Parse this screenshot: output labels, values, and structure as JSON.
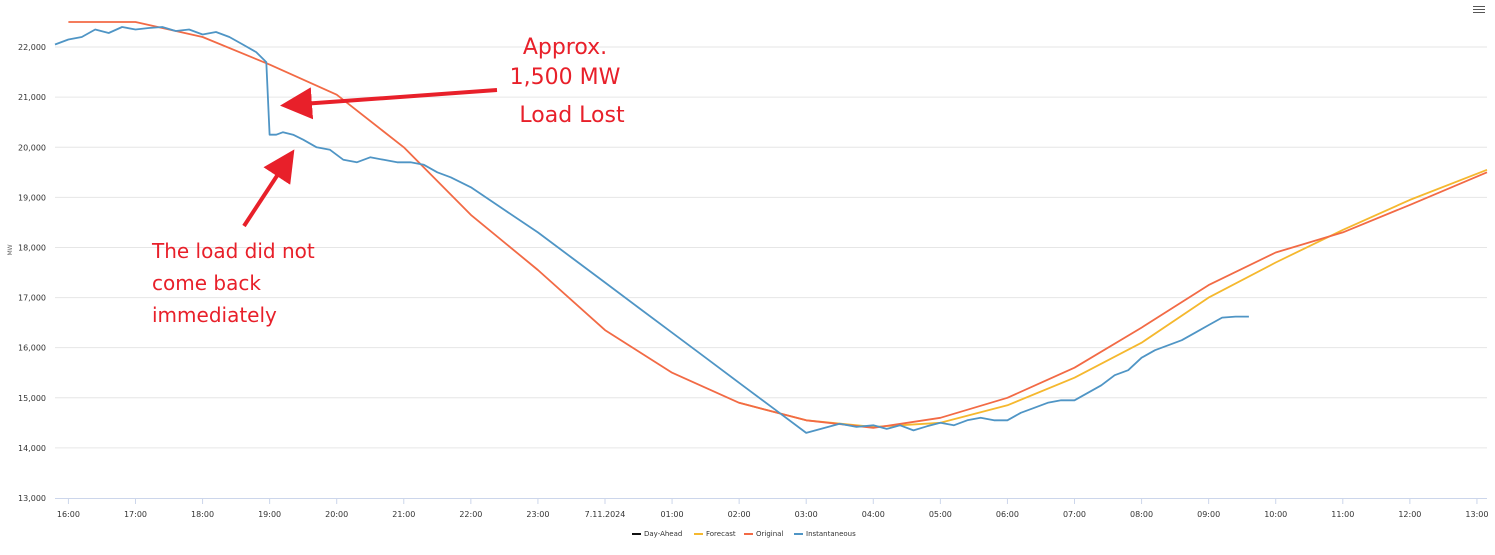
{
  "menu_icon": "hamburger-menu-icon",
  "chart_data": {
    "type": "line",
    "ylabel": "MW",
    "ylim": [
      13000,
      22500
    ],
    "yticks": [
      13000,
      14000,
      15000,
      16000,
      17000,
      18000,
      19000,
      20000,
      21000,
      22000
    ],
    "ytick_labels": [
      "13,000",
      "14,000",
      "15,000",
      "16,000",
      "17,000",
      "18,000",
      "19,000",
      "20,000",
      "21,000",
      "22,000"
    ],
    "xlim": [
      15.8,
      37.15
    ],
    "xticks": [
      16,
      17,
      18,
      19,
      20,
      21,
      22,
      23,
      24,
      25,
      26,
      27,
      28,
      29,
      30,
      31,
      32,
      33,
      34,
      35,
      36,
      37
    ],
    "xtick_labels": [
      "16:00",
      "17:00",
      "18:00",
      "19:00",
      "20:00",
      "21:00",
      "22:00",
      "23:00",
      "7.11.2024",
      "01:00",
      "02:00",
      "03:00",
      "04:00",
      "05:00",
      "06:00",
      "07:00",
      "08:00",
      "09:00",
      "10:00",
      "11:00",
      "12:00",
      "13:00"
    ],
    "grid": true,
    "legend_position": "bottom-center",
    "series": [
      {
        "name": "Day-Ahead",
        "color": "#111111",
        "x": [],
        "y": []
      },
      {
        "name": "Forecast",
        "color": "#f5b82e",
        "x": [
          26,
          27,
          28,
          29,
          30,
          31,
          32,
          33,
          34,
          35,
          36,
          37.15
        ],
        "y": [
          14900,
          14550,
          14420,
          14500,
          14850,
          15400,
          16100,
          17000,
          17700,
          18350,
          18950,
          19550
        ]
      },
      {
        "name": "Original",
        "color": "#f26a45",
        "x": [
          16,
          17,
          18,
          19,
          20,
          21,
          22,
          23,
          24,
          25,
          26,
          27,
          28,
          29,
          30,
          31,
          32,
          33,
          34,
          35,
          36,
          37.15
        ],
        "y": [
          22500,
          22500,
          22200,
          21650,
          21050,
          20000,
          18650,
          17550,
          16350,
          15500,
          14900,
          14550,
          14400,
          14600,
          15000,
          15600,
          16400,
          17250,
          17900,
          18300,
          18850,
          19500
        ]
      },
      {
        "name": "Instantaneous",
        "color": "#4f95c5",
        "x": [
          15.8,
          16,
          16.2,
          16.4,
          16.6,
          16.8,
          17,
          17.2,
          17.4,
          17.6,
          17.8,
          18,
          18.2,
          18.4,
          18.6,
          18.8,
          18.95,
          19.0,
          19.1,
          19.2,
          19.35,
          19.5,
          19.7,
          19.9,
          20.1,
          20.3,
          20.5,
          20.7,
          20.9,
          21.1,
          21.3,
          21.5,
          21.7,
          22,
          22.5,
          23,
          23.5,
          24,
          24.5,
          25,
          25.5,
          26,
          26.5,
          27,
          27.5,
          27.75,
          28,
          28.2,
          28.4,
          28.6,
          28.8,
          29,
          29.2,
          29.4,
          29.6,
          29.8,
          30,
          30.2,
          30.4,
          30.6,
          30.8,
          31,
          31.2,
          31.4,
          31.6,
          31.8,
          32,
          32.2,
          32.4,
          32.6,
          32.8,
          33,
          33.2,
          33.4,
          33.6
        ],
        "y": [
          22050,
          22150,
          22200,
          22350,
          22280,
          22400,
          22350,
          22380,
          22400,
          22320,
          22350,
          22250,
          22300,
          22200,
          22050,
          21900,
          21700,
          20250,
          20250,
          20300,
          20250,
          20150,
          20000,
          19950,
          19750,
          19700,
          19800,
          19750,
          19700,
          19700,
          19650,
          19500,
          19400,
          19200,
          18750,
          18300,
          17800,
          17300,
          16800,
          16300,
          15800,
          15300,
          14800,
          14300,
          14480,
          14420,
          14450,
          14380,
          14450,
          14350,
          14430,
          14500,
          14450,
          14550,
          14600,
          14550,
          14550,
          14700,
          14800,
          14900,
          14950,
          14950,
          15100,
          15250,
          15450,
          15550,
          15800,
          15950,
          16050,
          16150,
          16300,
          16450,
          16600,
          16620,
          16620
        ]
      }
    ],
    "annotations": [
      {
        "name": "load-lost",
        "lines": [
          "Approx.",
          "1,500 MW",
          "Load Lost"
        ]
      },
      {
        "name": "load-not-back",
        "lines": [
          "The load did not",
          "come back",
          "immediately"
        ]
      }
    ]
  }
}
